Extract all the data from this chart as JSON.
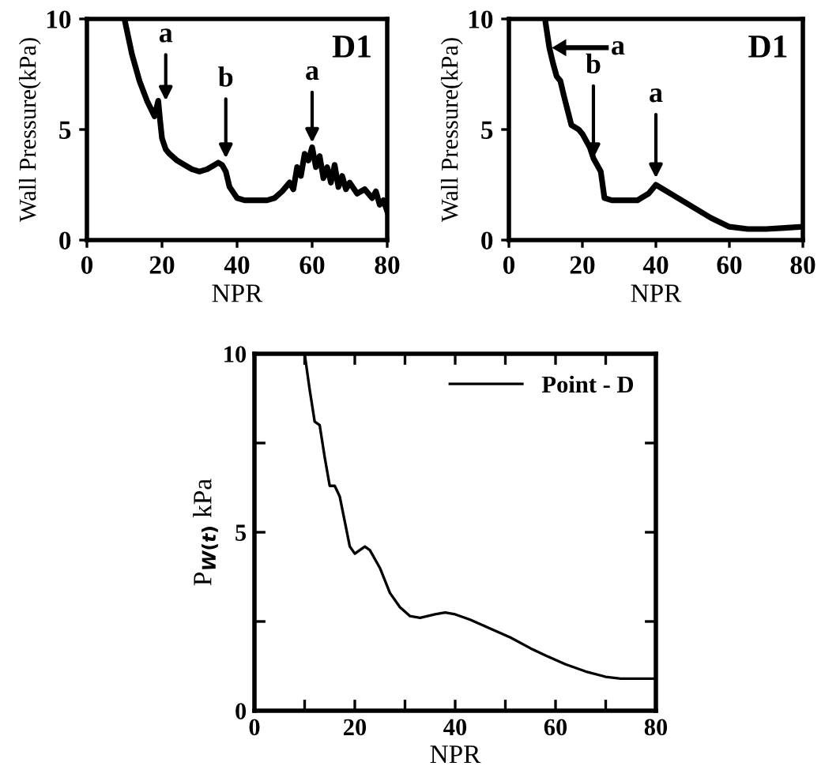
{
  "chart_data": [
    {
      "type": "line",
      "xlabel": "NPR",
      "ylabel": "Wall Pressure(kPa)",
      "xlim": [
        0,
        80
      ],
      "ylim": [
        0,
        10
      ],
      "xticks": [
        0,
        20,
        40,
        60,
        80
      ],
      "yticks": [
        0,
        5,
        10
      ],
      "grid": false,
      "legend": false,
      "annotations": [
        {
          "text": "a",
          "x": 21,
          "y": 6.3
        },
        {
          "text": "b",
          "x": 37,
          "y": 3.7
        },
        {
          "text": "a",
          "x": 60,
          "y": 4.4
        },
        "D1"
      ],
      "series": [
        {
          "color": "#000000",
          "x": [
            10,
            12,
            14,
            16,
            18,
            19,
            19.5,
            20,
            21,
            22,
            24,
            26,
            28,
            30,
            32,
            34,
            35,
            36,
            37,
            38,
            40,
            42,
            45,
            48,
            50,
            52,
            54,
            55,
            56,
            57,
            58,
            59,
            60,
            61,
            62,
            63,
            64,
            65,
            66,
            67,
            68,
            69,
            70,
            72,
            74,
            76,
            77,
            78,
            79,
            80
          ],
          "values": [
            10,
            8.4,
            7.2,
            6.3,
            5.6,
            6.3,
            5.4,
            4.6,
            4.1,
            3.9,
            3.6,
            3.4,
            3.2,
            3.1,
            3.2,
            3.4,
            3.5,
            3.4,
            3.1,
            2.4,
            1.9,
            1.8,
            1.8,
            1.8,
            1.9,
            2.2,
            2.6,
            2.3,
            3.3,
            2.9,
            3.9,
            3.6,
            4.2,
            3.3,
            3.8,
            2.8,
            3.3,
            2.6,
            3.4,
            2.4,
            2.9,
            2.3,
            2.6,
            2.1,
            2.3,
            1.9,
            2.2,
            1.6,
            1.8,
            1.3
          ]
        }
      ]
    },
    {
      "type": "line",
      "xlabel": "NPR",
      "ylabel": "Wall Pressure(kPa)",
      "xlim": [
        0,
        80
      ],
      "ylim": [
        0,
        10
      ],
      "xticks": [
        0,
        20,
        40,
        60,
        80
      ],
      "yticks": [
        0,
        5,
        10
      ],
      "grid": false,
      "legend": false,
      "annotations": [
        {
          "text": "a",
          "x": 11,
          "y": 8.7
        },
        {
          "text": "b",
          "x": 23,
          "y": 3.7
        },
        {
          "text": "a",
          "x": 40,
          "y": 2.8
        },
        "D1"
      ],
      "series": [
        {
          "color": "#000000",
          "x": [
            10,
            11,
            12,
            13,
            14,
            15,
            17,
            19,
            20,
            22,
            23,
            24,
            25,
            26,
            28,
            30,
            35,
            38,
            40,
            42,
            45,
            50,
            55,
            60,
            65,
            70,
            75,
            80
          ],
          "values": [
            9.8,
            8.7,
            8,
            7.4,
            7.2,
            6.5,
            5.2,
            5.0,
            4.8,
            4.2,
            3.7,
            3.4,
            3.1,
            1.9,
            1.8,
            1.8,
            1.8,
            2.1,
            2.5,
            2.3,
            2.0,
            1.5,
            1.0,
            0.6,
            0.5,
            0.5,
            0.55,
            0.6
          ]
        }
      ]
    },
    {
      "type": "line",
      "xlabel": "NPR",
      "ylabel": "P$_{W(t)}$ kPa",
      "xlim": [
        0,
        80
      ],
      "ylim": [
        0,
        10
      ],
      "xticks": [
        0,
        {
          "value": 10,
          "label": null
        },
        20,
        {
          "value": 30,
          "label": null
        },
        40,
        {
          "value": 50,
          "label": null
        },
        60,
        {
          "value": 70,
          "label": null
        },
        80
      ],
      "yticks": [
        0,
        {
          "value": 2.5,
          "label": null
        },
        5,
        {
          "value": 7.5,
          "label": null
        },
        10
      ],
      "grid": false,
      "legend": "top right",
      "series": [
        {
          "name": "Point - D",
          "color": "#000000",
          "x": [
            10,
            11,
            12,
            13,
            14,
            15,
            16,
            17,
            18,
            19,
            20,
            21,
            22,
            23,
            25,
            27,
            29,
            31,
            33,
            36,
            38,
            40,
            43,
            47,
            51,
            55,
            58,
            62,
            66,
            70,
            73,
            80
          ],
          "values": [
            10,
            9,
            8.1,
            8,
            7.1,
            6.3,
            6.3,
            6.0,
            5.3,
            4.6,
            4.4,
            4.5,
            4.6,
            4.5,
            4.0,
            3.3,
            2.9,
            2.65,
            2.6,
            2.7,
            2.75,
            2.7,
            2.55,
            2.3,
            2.05,
            1.75,
            1.55,
            1.3,
            1.1,
            0.95,
            0.9,
            0.9
          ]
        }
      ]
    }
  ]
}
